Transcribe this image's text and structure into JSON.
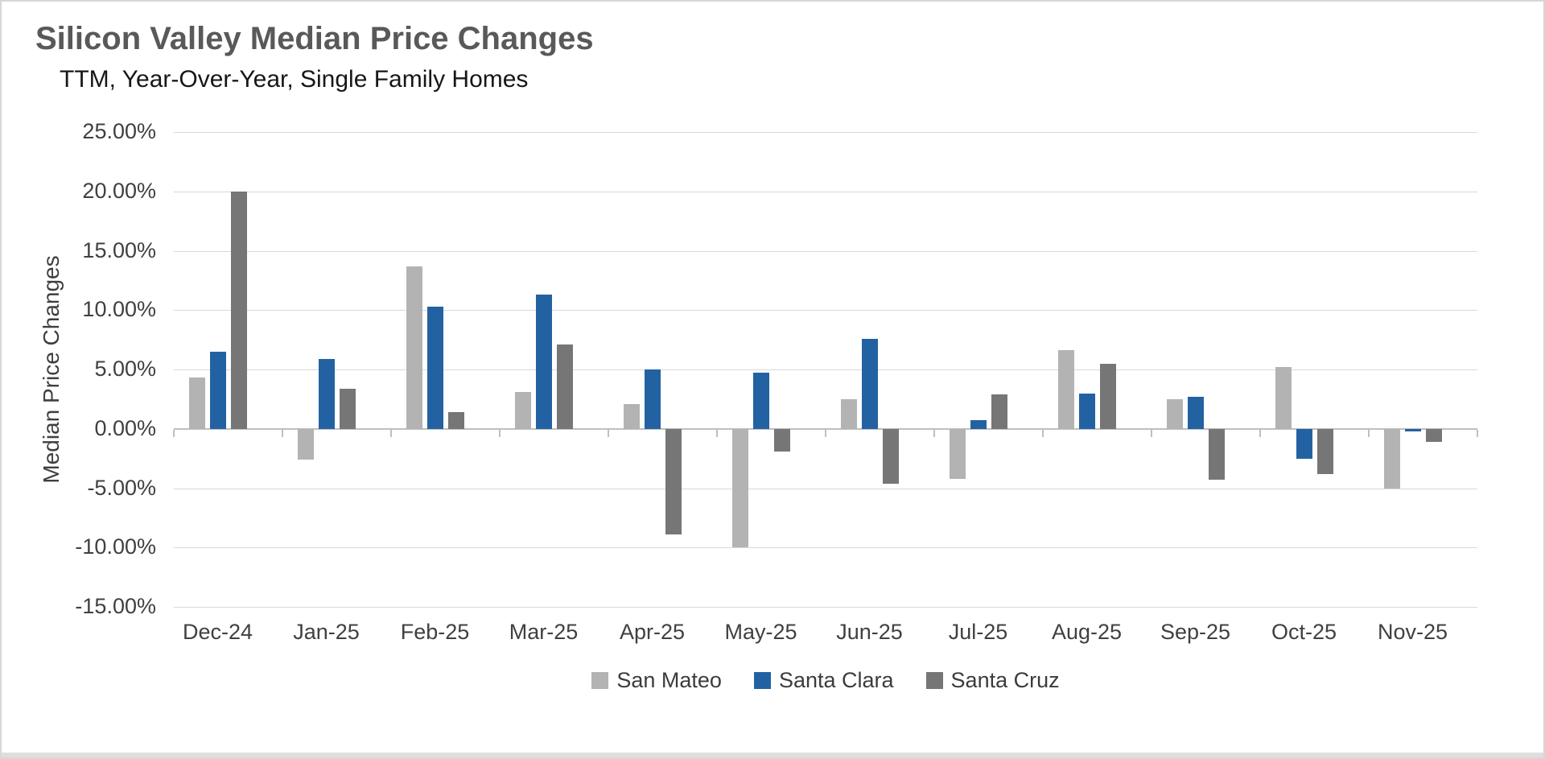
{
  "chart_data": {
    "type": "bar",
    "title": "Silicon Valley Median Price Changes",
    "subtitle": "TTM, Year-Over-Year, Single Family Homes",
    "ylabel": "Median Price Changes",
    "xlabel": "",
    "categories": [
      "Dec-24",
      "Jan-25",
      "Feb-25",
      "Mar-25",
      "Apr-25",
      "May-25",
      "Jun-25",
      "Jul-25",
      "Aug-25",
      "Sep-25",
      "Oct-25",
      "Nov-25"
    ],
    "series": [
      {
        "name": "San Mateo",
        "color": "#b3b3b3",
        "values": [
          4.3,
          -2.6,
          13.7,
          3.1,
          2.1,
          -10.0,
          2.5,
          -4.2,
          6.6,
          2.5,
          5.2,
          -5.0
        ]
      },
      {
        "name": "Santa Clara",
        "color": "#2362a2",
        "values": [
          6.5,
          5.9,
          10.3,
          11.3,
          5.0,
          4.7,
          7.6,
          0.7,
          3.0,
          2.7,
          -2.5,
          -0.2
        ]
      },
      {
        "name": "Santa Cruz",
        "color": "#767676",
        "values": [
          20.0,
          3.4,
          1.4,
          7.1,
          -8.9,
          -1.9,
          -4.6,
          2.9,
          5.5,
          -4.3,
          -3.8,
          -1.1
        ]
      }
    ],
    "ylim": [
      -15,
      25
    ],
    "ytick_step": 5,
    "ytick_format": "0.00%",
    "grid": true,
    "legend_position": "bottom",
    "colors": {
      "title": "#595959",
      "subtitle": "#171717",
      "axis_text": "#404040",
      "gridline": "#d9d9d9",
      "axis_line": "#bfbfbf",
      "background": "#ffffff"
    }
  }
}
